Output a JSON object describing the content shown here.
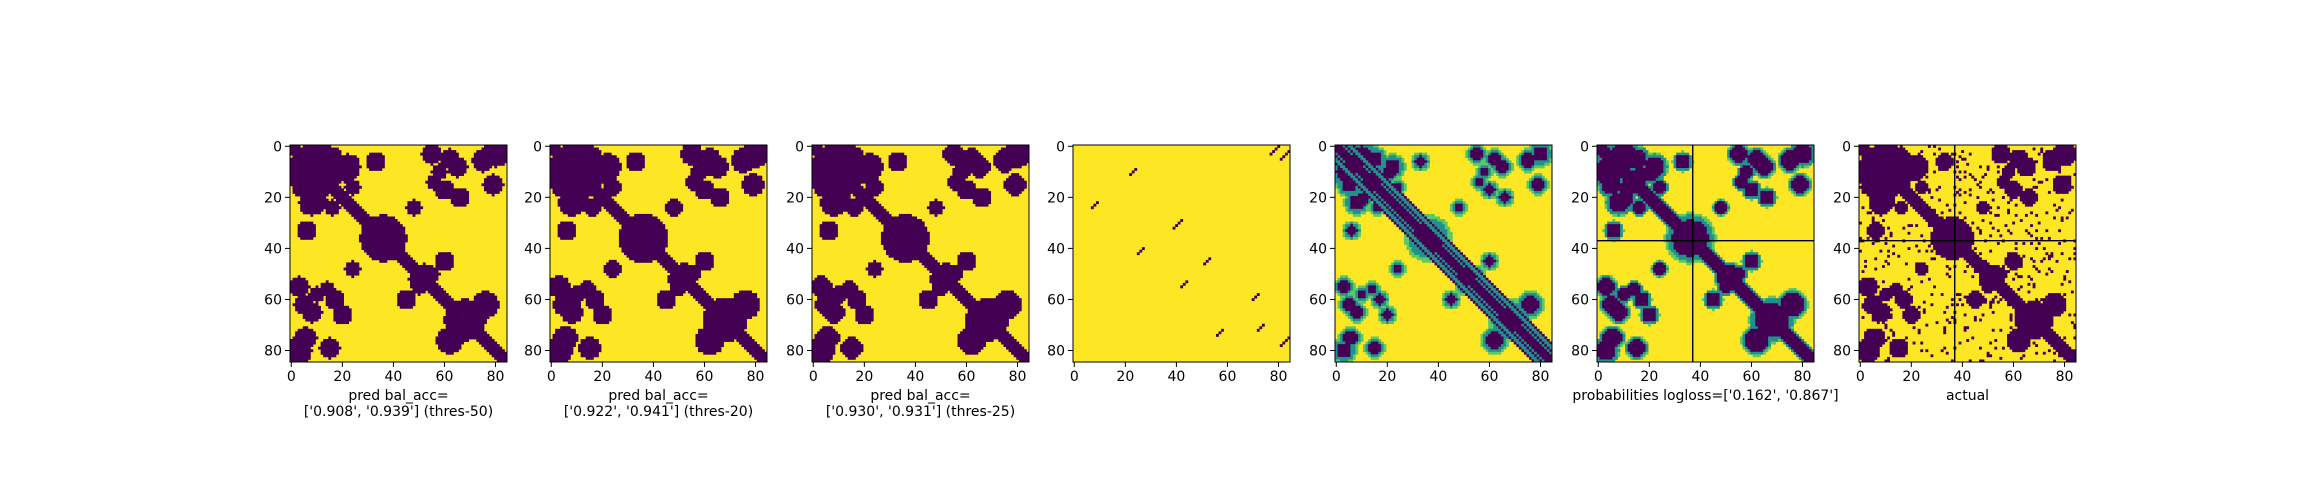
{
  "colors": {
    "yellow": "#fde725",
    "purple": "#440154",
    "teal": "#21918c",
    "green": "#5ec962",
    "frame": "#000000"
  },
  "chart_data": [
    {
      "type": "heatmap",
      "matrix_size": 85,
      "xlim": [
        0,
        84
      ],
      "ylim": [
        84,
        0
      ],
      "xticks": [
        "0",
        "20",
        "40",
        "60",
        "80"
      ],
      "yticks": [
        "0",
        "20",
        "40",
        "60",
        "80"
      ],
      "kind": "binary-prediction",
      "xlabel_lines": [
        "pred bal_acc=",
        "['0.908', '0.939'] (thres-50)"
      ]
    },
    {
      "type": "heatmap",
      "matrix_size": 85,
      "xlim": [
        0,
        84
      ],
      "ylim": [
        84,
        0
      ],
      "xticks": [
        "0",
        "20",
        "40",
        "60",
        "80"
      ],
      "yticks": [
        "0",
        "20",
        "40",
        "60",
        "80"
      ],
      "kind": "binary-prediction",
      "xlabel_lines": [
        "pred bal_acc=",
        "['0.922', '0.941'] (thres-20)"
      ]
    },
    {
      "type": "heatmap",
      "matrix_size": 85,
      "xlim": [
        0,
        84
      ],
      "ylim": [
        84,
        0
      ],
      "xticks": [
        "0",
        "20",
        "40",
        "60",
        "80"
      ],
      "yticks": [
        "0",
        "20",
        "40",
        "60",
        "80"
      ],
      "kind": "binary-prediction",
      "xlabel_lines": [
        "pred bal_acc=",
        "['0.930', '0.931'] (thres-25)"
      ]
    },
    {
      "type": "heatmap",
      "matrix_size": 85,
      "xlim": [
        0,
        84
      ],
      "ylim": [
        84,
        0
      ],
      "xticks": [
        "0",
        "20",
        "40",
        "60",
        "80"
      ],
      "yticks": [
        "0",
        "20",
        "40",
        "60",
        "80"
      ],
      "kind": "sparse-diagonals",
      "xlabel_lines": []
    },
    {
      "type": "heatmap",
      "matrix_size": 85,
      "xlim": [
        0,
        84
      ],
      "ylim": [
        84,
        0
      ],
      "xticks": [
        "0",
        "20",
        "40",
        "60",
        "80"
      ],
      "yticks": [
        "0",
        "20",
        "40",
        "60",
        "80"
      ],
      "kind": "continuous",
      "xlabel_lines": []
    },
    {
      "type": "heatmap",
      "matrix_size": 85,
      "xlim": [
        0,
        84
      ],
      "ylim": [
        84,
        0
      ],
      "xticks": [
        "0",
        "20",
        "40",
        "60",
        "80"
      ],
      "yticks": [
        "0",
        "20",
        "40",
        "60",
        "80"
      ],
      "kind": "probabilities",
      "crosshair_at": 37,
      "xlabel_lines": [
        "probabilities logloss=['0.162', '0.867']"
      ]
    },
    {
      "type": "heatmap",
      "matrix_size": 85,
      "xlim": [
        0,
        84
      ],
      "ylim": [
        84,
        0
      ],
      "xticks": [
        "0",
        "20",
        "40",
        "60",
        "80"
      ],
      "yticks": [
        "0",
        "20",
        "40",
        "60",
        "80"
      ],
      "kind": "actual",
      "crosshair_at": 37,
      "xlabel_lines": [
        "actual"
      ]
    }
  ]
}
